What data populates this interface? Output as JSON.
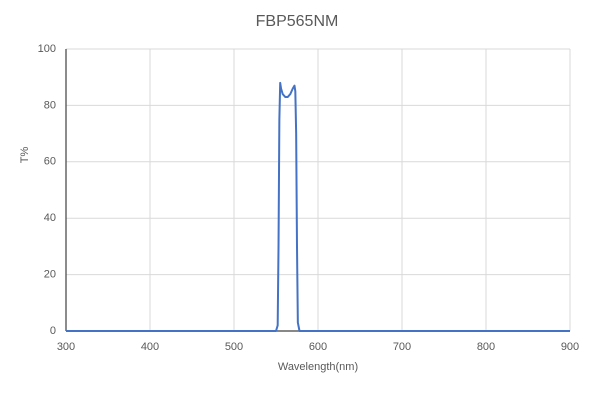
{
  "chart_data": {
    "type": "line",
    "title": "FBP565NM",
    "x_label": "Wavelength(nm)",
    "y_label": "T%",
    "x": [
      300,
      550,
      552,
      553,
      554,
      555,
      556,
      558,
      561,
      564,
      567,
      570,
      572,
      573,
      574,
      575,
      576,
      578,
      600,
      900
    ],
    "series": [
      {
        "color": "#4472c4",
        "values": [
          0,
          0,
          2,
          30,
          75,
          88,
          86,
          84,
          83,
          83,
          84,
          86,
          87,
          85,
          70,
          30,
          3,
          0,
          0,
          0
        ]
      }
    ],
    "xlim": [
      300,
      900
    ],
    "xticks": [
      300,
      400,
      500,
      600,
      700,
      800,
      900
    ],
    "ylim": [
      0,
      100
    ],
    "yticks": [
      0,
      20,
      40,
      60,
      80,
      100
    ],
    "grid": true
  }
}
